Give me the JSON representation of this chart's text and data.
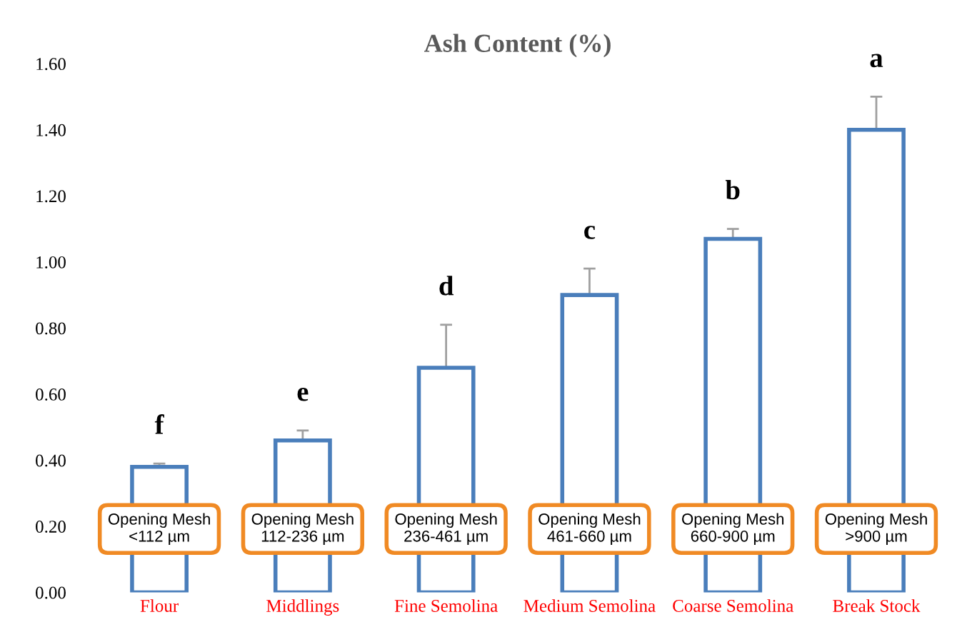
{
  "chart_data": {
    "type": "bar",
    "title": "Ash Content (%)",
    "categories": [
      "Flour",
      "Middlings",
      "Fine Semolina",
      "Medium Semolina",
      "Coarse Semolina",
      "Break Stock"
    ],
    "values": [
      0.38,
      0.46,
      0.68,
      0.9,
      1.07,
      1.4
    ],
    "errors": [
      0.01,
      0.03,
      0.13,
      0.08,
      0.03,
      0.1
    ],
    "color": "#4a7ebb",
    "ylim": [
      0,
      1.6
    ],
    "yticks": [
      {
        "value": 0,
        "label": "0.00"
      },
      {
        "value": 0.2,
        "label": "0.20"
      },
      {
        "value": 0.4,
        "label": "0.40"
      },
      {
        "value": 0.6,
        "label": "0.60"
      },
      {
        "value": 0.8,
        "label": "0.80"
      },
      {
        "value": 1.0,
        "label": "1.00"
      },
      {
        "value": 1.2,
        "label": "1.20"
      },
      {
        "value": 1.4,
        "label": "1.40"
      },
      {
        "value": 1.6,
        "label": "1.60"
      }
    ],
    "grid": false,
    "annotations": [
      "f",
      "e",
      "d",
      "c",
      "b",
      "a",
      "Opening Mesh\n<112 µm",
      "Opening Mesh\n112-236 µm",
      "Opening Mesh\n236-461 µm",
      "Opening Mesh\n461-660 µm",
      "Opening Mesh\n660-900 µm",
      "Opening Mesh\n>900 µm"
    ]
  }
}
